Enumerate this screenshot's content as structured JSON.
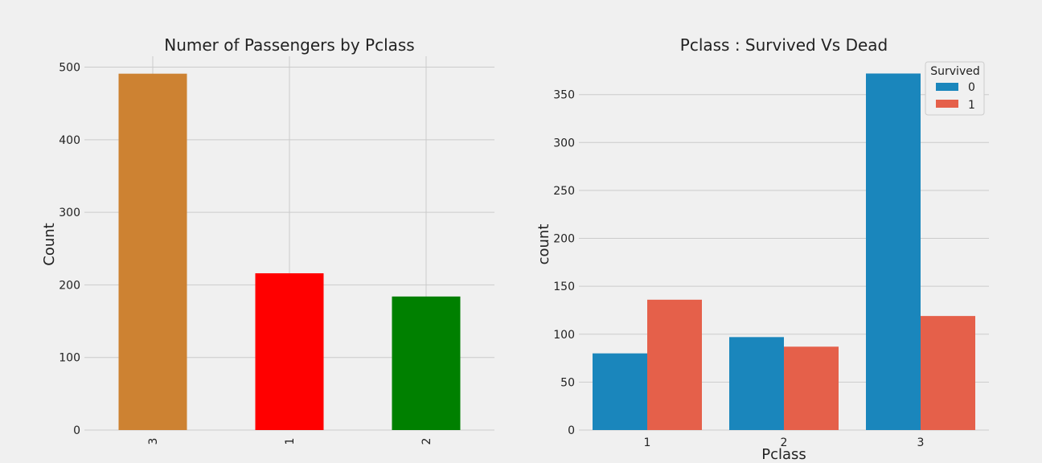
{
  "chart_data": [
    {
      "type": "bar",
      "title": "Numer of Passengers by Pclass",
      "xlabel": "",
      "ylabel": "Count",
      "categories": [
        "3",
        "1",
        "2"
      ],
      "values": [
        491,
        216,
        184
      ],
      "colors": [
        "#cd8232",
        "#ff0000",
        "#008000"
      ],
      "ylim": [
        0,
        515
      ],
      "yticks": [
        0,
        100,
        200,
        300,
        400,
        500
      ],
      "grid": true,
      "xtick_rotation": "vertical"
    },
    {
      "type": "bar",
      "title": "Pclass : Survived Vs Dead",
      "xlabel": "Pclass",
      "ylabel": "count",
      "categories": [
        "1",
        "2",
        "3"
      ],
      "series": [
        {
          "name": "0",
          "values": [
            80,
            97,
            372
          ],
          "color": "#1a86bc"
        },
        {
          "name": "1",
          "values": [
            136,
            87,
            119
          ],
          "color": "#e5604a"
        }
      ],
      "legend_title": "Survived",
      "legend_position": "top-right",
      "ylim": [
        0,
        390
      ],
      "yticks": [
        0,
        50,
        100,
        150,
        200,
        250,
        300,
        350
      ],
      "grid": true
    }
  ]
}
